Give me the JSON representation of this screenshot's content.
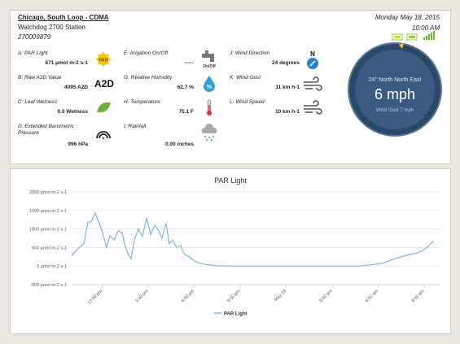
{
  "header": {
    "station": "Chicago, South Loop - CDMA",
    "model": "Watchdog 2700 Station",
    "serial": "270009879",
    "date": "Monday May 18, 2015",
    "time": "10:00 AM"
  },
  "columns": [
    [
      {
        "label": "A: PAR Light",
        "value": "671 µmol m-2 s-1",
        "icon": "PAR"
      },
      {
        "label": "B: Raw A2D Value",
        "value": "4095 A2D",
        "icon": "A2D"
      },
      {
        "label": "C: Leaf Wetness",
        "value": "0.0 Wetness"
      },
      {
        "label": "D: Extended Barometric Pressure",
        "value": "996 hPa"
      }
    ],
    [
      {
        "label": "E: Irrigation On/Off",
        "value": "-----",
        "icon": "On/Off"
      },
      {
        "label": "G: Relative Humidity",
        "value": "62.7 %",
        "icon": "%"
      },
      {
        "label": "H: Temperature",
        "value": "75.1 F"
      },
      {
        "label": "I: Rainfall",
        "value": "0.00 inches"
      }
    ],
    [
      {
        "label": "J: Wind Direction",
        "value": "24 degrees",
        "icon": "N"
      },
      {
        "label": "K: Wind Gust",
        "value": "11 km h-1"
      },
      {
        "label": "L: Wind Speed",
        "value": "10 km h-1"
      }
    ]
  ],
  "compass": {
    "direction": "24° North North East",
    "speed": "6 mph",
    "gust": "Wind Gust 7 mph"
  },
  "chart_data": {
    "type": "line",
    "title": "PAR Light",
    "x": [
      0,
      0.37,
      0.64,
      0.8,
      1.06,
      1.27,
      1.54,
      1.81,
      2.02,
      2.28,
      2.5,
      2.76,
      3.03,
      3.29,
      3.45,
      3.66,
      3.88,
      4.09,
      4.35,
      4.62,
      4.89,
      5.15,
      5.42,
      5.63,
      5.89,
      6.16,
      6.37,
      6.58,
      6.85,
      7.12,
      7.33,
      7.65,
      8.07,
      8.6,
      9.4,
      10.2,
      11.26,
      18.7,
      19.5,
      20.3,
      21.1,
      21.9,
      22.5,
      22.9,
      23.3,
      23.6
    ],
    "series": [
      {
        "name": "PAR Light",
        "color": "#7cb5ec",
        "values": [
          280,
          450,
          550,
          600,
          1180,
          1200,
          1430,
          1150,
          900,
          500,
          820,
          700,
          950,
          900,
          600,
          350,
          200,
          700,
          1000,
          800,
          1300,
          850,
          1100,
          1000,
          750,
          1150,
          600,
          700,
          500,
          550,
          330,
          250,
          120,
          50,
          10,
          0,
          0,
          0,
          30,
          80,
          200,
          300,
          350,
          420,
          550,
          680
        ]
      }
    ],
    "xlim": [
      0,
      24
    ],
    "xticks": [
      {
        "value": 2,
        "label": "12:00 pm"
      },
      {
        "value": 5,
        "label": "3:00 pm"
      },
      {
        "value": 8,
        "label": "6:00 pm"
      },
      {
        "value": 11,
        "label": "9:00 pm"
      },
      {
        "value": 14,
        "label": "May 18"
      },
      {
        "value": 17,
        "label": "3:00 am"
      },
      {
        "value": 20,
        "label": "6:00 am"
      },
      {
        "value": 23,
        "label": "9:00 am"
      }
    ],
    "ylim": [
      -500,
      2000
    ],
    "yticks": [
      {
        "value": -500,
        "label": "-500 µmol m-2 s-1"
      },
      {
        "value": 0,
        "label": "0 µmol m-2 s-1"
      },
      {
        "value": 500,
        "label": "500 µmol m-2 s-1"
      },
      {
        "value": 1000,
        "label": "1000 µmol m-2 s-1"
      },
      {
        "value": 1500,
        "label": "1500 µmol m-2 s-1"
      },
      {
        "value": 2000,
        "label": "2000 µmol m-2 s-1"
      }
    ],
    "grid": true
  }
}
